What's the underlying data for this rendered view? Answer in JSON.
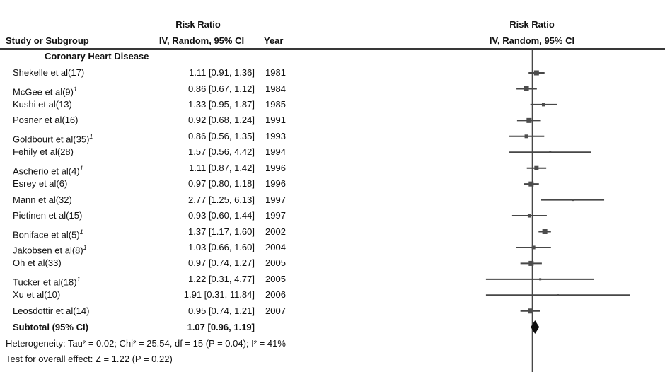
{
  "colors": {
    "text": "#111111",
    "line": "#474747",
    "marker": "#4d4d4d",
    "diamond": "#0d0d0d",
    "rule": "#383838"
  },
  "header": {
    "study_col": "Study or Subgroup",
    "effect_col_title": "Risk Ratio",
    "effect_col_subtitle": "IV, Random, 95% CI",
    "year_col": "Year",
    "plot_col_title": "Risk Ratio",
    "plot_col_subtitle": "IV, Random, 95% CI"
  },
  "subgroup_label": "Coronary Heart Disease",
  "chart_data": {
    "type": "forest",
    "effect_measure": "Risk Ratio",
    "model": "IV, Random",
    "ci_level": "95% CI",
    "x_scale": "log",
    "null_line": 1.0,
    "studies": [
      {
        "name": "Shekelle et al(17)",
        "footnote": "",
        "rr": 1.11,
        "lo": 0.91,
        "hi": 1.36,
        "ci_label": "1.11 [0.91, 1.36]",
        "year": "1981",
        "marker": 7
      },
      {
        "name": "McGee et al(9)",
        "footnote": "1",
        "rr": 0.86,
        "lo": 0.67,
        "hi": 1.12,
        "ci_label": "0.86 [0.67, 1.12]",
        "year": "1984",
        "marker": 7
      },
      {
        "name": "Kushi et al(13)",
        "footnote": "",
        "rr": 1.33,
        "lo": 0.95,
        "hi": 1.87,
        "ci_label": "1.33 [0.95, 1.87]",
        "year": "1985",
        "marker": 5
      },
      {
        "name": "Posner et al(16)",
        "footnote": "",
        "rr": 0.92,
        "lo": 0.68,
        "hi": 1.24,
        "ci_label": "0.92 [0.68, 1.24]",
        "year": "1991",
        "marker": 7
      },
      {
        "name": "Goldbourt et al(35)",
        "footnote": "1",
        "rr": 0.86,
        "lo": 0.56,
        "hi": 1.35,
        "ci_label": "0.86 [0.56, 1.35]",
        "year": "1993",
        "marker": 5
      },
      {
        "name": "Fehily et al(28)",
        "footnote": "",
        "rr": 1.57,
        "lo": 0.56,
        "hi": 4.42,
        "ci_label": "1.57 [0.56, 4.42]",
        "year": "1994",
        "marker": 3
      },
      {
        "name": "Ascherio et al(4)",
        "footnote": "1",
        "rr": 1.11,
        "lo": 0.87,
        "hi": 1.42,
        "ci_label": "1.11 [0.87, 1.42]",
        "year": "1996",
        "marker": 6
      },
      {
        "name": "Esrey et al(6)",
        "footnote": "",
        "rr": 0.97,
        "lo": 0.8,
        "hi": 1.18,
        "ci_label": "0.97 [0.80, 1.18]",
        "year": "1996",
        "marker": 7
      },
      {
        "name": "Mann et al(32)",
        "footnote": "",
        "rr": 2.77,
        "lo": 1.25,
        "hi": 6.13,
        "ci_label": "2.77 [1.25, 6.13]",
        "year": "1997",
        "marker": 3
      },
      {
        "name": "Pietinen et al(15)",
        "footnote": "",
        "rr": 0.93,
        "lo": 0.6,
        "hi": 1.44,
        "ci_label": "0.93 [0.60, 1.44]",
        "year": "1997",
        "marker": 5
      },
      {
        "name": "Boniface et al(5)",
        "footnote": "1",
        "rr": 1.37,
        "lo": 1.17,
        "hi": 1.6,
        "ci_label": "1.37 [1.17, 1.60]",
        "year": "2002",
        "marker": 7
      },
      {
        "name": "Jakobsen et al(8)",
        "footnote": "1",
        "rr": 1.03,
        "lo": 0.66,
        "hi": 1.6,
        "ci_label": "1.03 [0.66, 1.60]",
        "year": "2004",
        "marker": 5
      },
      {
        "name": "Oh et al(33)",
        "footnote": "",
        "rr": 0.97,
        "lo": 0.74,
        "hi": 1.27,
        "ci_label": "0.97 [0.74, 1.27]",
        "year": "2005",
        "marker": 7
      },
      {
        "name": "Tucker et al(18)",
        "footnote": "1",
        "rr": 1.22,
        "lo": 0.31,
        "hi": 4.77,
        "ci_label": "1.22 [0.31, 4.77]",
        "year": "2005",
        "marker": 3
      },
      {
        "name": "Xu et al(10)",
        "footnote": "",
        "rr": 1.91,
        "lo": 0.31,
        "hi": 11.84,
        "ci_label": "1.91 [0.31, 11.84]",
        "year": "2006",
        "marker": 2.5
      },
      {
        "name": "Leosdottir et al(14)",
        "footnote": "",
        "rr": 0.95,
        "lo": 0.74,
        "hi": 1.21,
        "ci_label": "0.95 [0.74, 1.21]",
        "year": "2007",
        "marker": 7
      }
    ],
    "subtotal": {
      "label": "Subtotal (95% CI)",
      "rr": 1.07,
      "lo": 0.96,
      "hi": 1.19,
      "ci_label": "1.07 [0.96, 1.19]"
    },
    "statistics": {
      "tau2": 0.02,
      "chi2": 25.54,
      "df": 15,
      "p_heterogeneity": 0.04,
      "i2_pct": 41,
      "z": 1.22,
      "p_overall": 0.22
    }
  },
  "footer": {
    "heterogeneity": "Heterogeneity: Tau² = 0.02; Chi² = 25.54, df = 15 (P = 0.04); I² = 41%",
    "overall_effect": "Test for overall effect: Z = 1.22 (P = 0.22)"
  }
}
